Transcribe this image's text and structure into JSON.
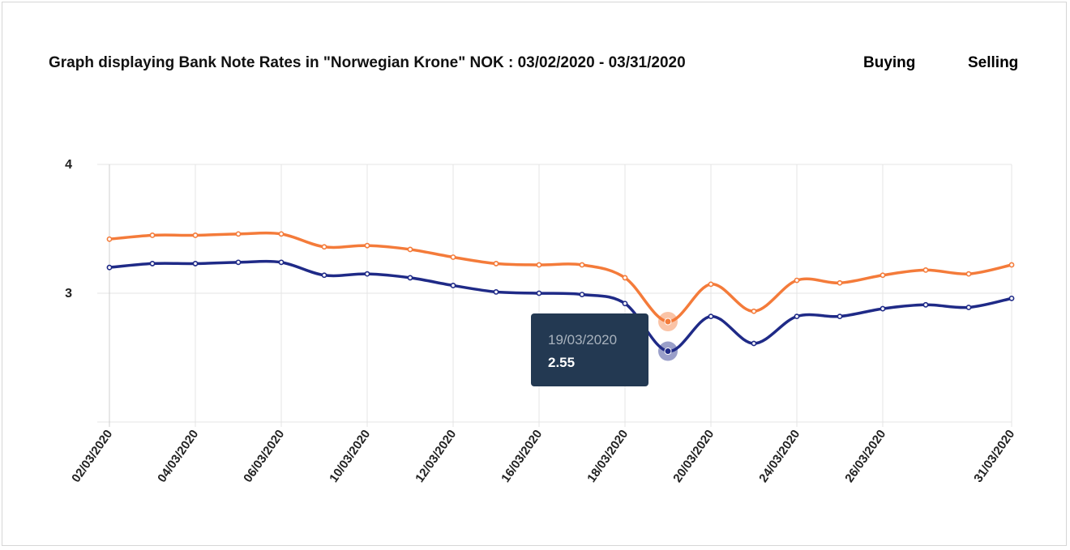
{
  "title": "Graph displaying Bank Note Rates in \"Norwegian Krone\" NOK : 03/02/2020 - 03/31/2020",
  "legend": {
    "buying": "Buying",
    "selling": "Selling"
  },
  "colors": {
    "buying": "#1f2a87",
    "selling": "#f47b3a",
    "grid": "#e4e4e4",
    "tooltip_bg": "#233952"
  },
  "tooltip": {
    "date": "19/03/2020",
    "value": "2.55"
  },
  "chart_data": {
    "type": "line",
    "x": [
      "02/03/2020",
      "03/03/2020",
      "04/03/2020",
      "05/03/2020",
      "06/03/2020",
      "09/03/2020",
      "10/03/2020",
      "11/03/2020",
      "12/03/2020",
      "13/03/2020",
      "16/03/2020",
      "17/03/2020",
      "18/03/2020",
      "19/03/2020",
      "20/03/2020",
      "23/03/2020",
      "24/03/2020",
      "25/03/2020",
      "26/03/2020",
      "27/03/2020",
      "30/03/2020",
      "31/03/2020"
    ],
    "x_tick_labels": [
      "02/03/2020",
      "04/03/2020",
      "06/03/2020",
      "10/03/2020",
      "12/03/2020",
      "16/03/2020",
      "18/03/2020",
      "20/03/2020",
      "24/03/2020",
      "26/03/2020",
      "31/03/2020"
    ],
    "series": [
      {
        "name": "Selling",
        "values": [
          3.42,
          3.45,
          3.45,
          3.46,
          3.46,
          3.36,
          3.37,
          3.34,
          3.28,
          3.23,
          3.22,
          3.22,
          3.12,
          2.78,
          3.07,
          2.86,
          3.1,
          3.08,
          3.14,
          3.18,
          3.15,
          3.22
        ]
      },
      {
        "name": "Buying",
        "values": [
          3.2,
          3.23,
          3.23,
          3.24,
          3.24,
          3.14,
          3.15,
          3.12,
          3.06,
          3.01,
          3.0,
          2.99,
          2.92,
          2.55,
          2.82,
          2.61,
          2.82,
          2.82,
          2.88,
          2.91,
          2.89,
          2.96
        ]
      }
    ],
    "y_ticks": [
      3,
      4
    ],
    "ylim": [
      2.0,
      4.0
    ],
    "grid": true,
    "legend_position": "top-right",
    "highlight": {
      "x": "19/03/2020"
    }
  }
}
